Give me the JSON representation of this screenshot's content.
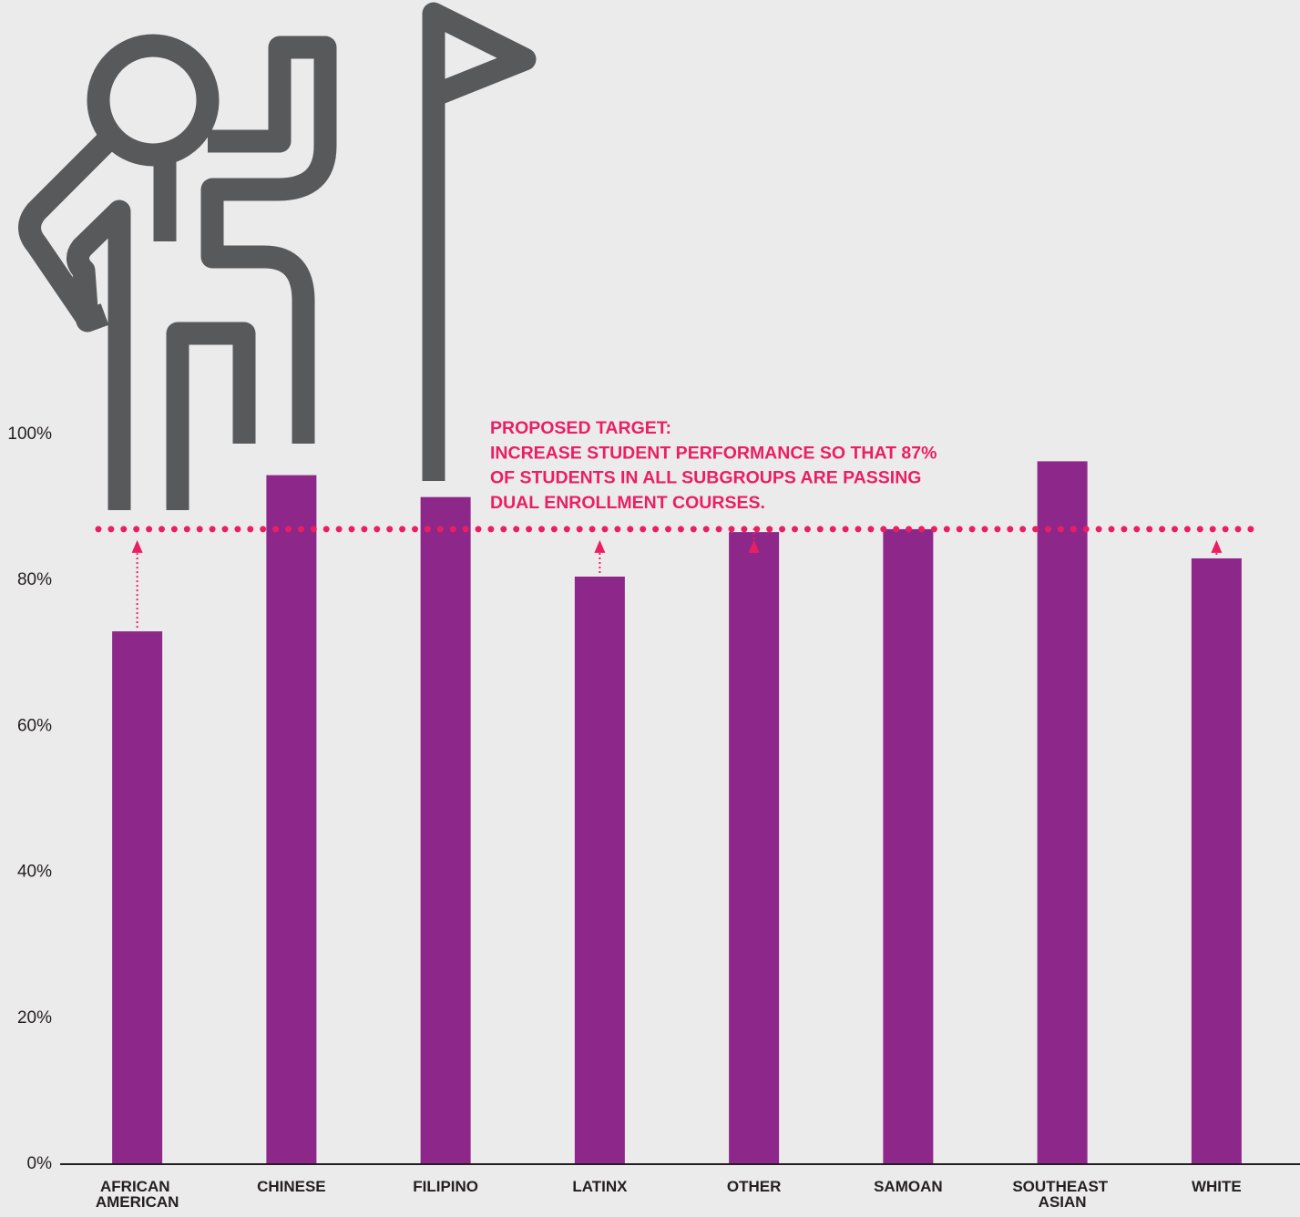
{
  "chart_data": {
    "type": "bar",
    "categories": [
      "AFRICAN AMERICAN",
      "CHINESE",
      "FILIPINO",
      "LATINX",
      "OTHER",
      "SAMOAN",
      "SOUTHEAST ASIAN",
      "WHITE"
    ],
    "values": [
      73.0,
      94.4,
      91.4,
      80.5,
      86.6,
      87.0,
      96.3,
      83.0
    ],
    "color": "#8e278a",
    "ylim": [
      0,
      159.5
    ],
    "yticks": [
      {
        "value": 0,
        "label": "0%"
      },
      {
        "value": 20,
        "label": "20%"
      },
      {
        "value": 40,
        "label": "40%"
      },
      {
        "value": 60,
        "label": "60%"
      },
      {
        "value": 80,
        "label": "80%"
      },
      {
        "value": 100,
        "label": "100%"
      }
    ],
    "target": 87,
    "target_color": "#ea1f63",
    "annotation": [
      "PROPOSED TARGET:",
      "INCREASE STUDENT PERFORMANCE SO THAT 87%",
      "OF STUDENTS IN ALL SUBGROUPS ARE PASSING",
      "DUAL ENROLLMENT COURSES."
    ]
  }
}
